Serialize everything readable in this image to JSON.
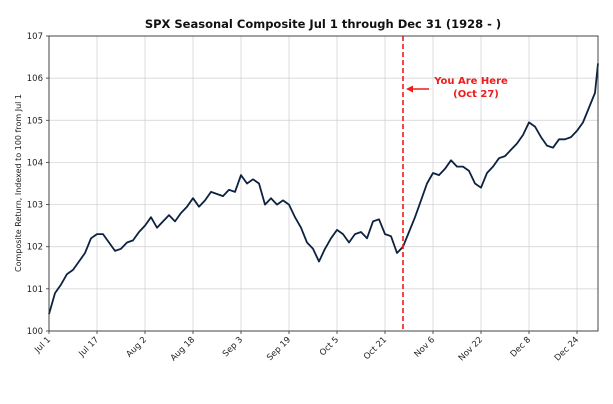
{
  "chart_data": {
    "type": "line",
    "title": "SPX Seasonal Composite Jul 1 through Dec 31 (1928 - )",
    "xlabel": "",
    "ylabel": "Composite Return, Indexed to 100 from Jul 1",
    "ylim": [
      100,
      107
    ],
    "yticks": [
      "100",
      "101",
      "102",
      "103",
      "104",
      "105",
      "106",
      "107"
    ],
    "xlim": [
      "Jul 1",
      "Dec 31"
    ],
    "xticks": [
      "Jul 1",
      "Jul 17",
      "Aug 2",
      "Aug 18",
      "Sep 3",
      "Sep 19",
      "Oct 5",
      "Oct 21",
      "Nov 6",
      "Nov 22",
      "Dec 8",
      "Dec 24"
    ],
    "grid": true,
    "line_color": "#0d2240",
    "marker_color": "#ee1c1c",
    "marker_date": "Oct 27",
    "annotation": {
      "line1": "You Are Here",
      "line2": "(Oct 27)"
    },
    "series": [
      {
        "x": [
          "Jul 1",
          "Jul 3",
          "Jul 5",
          "Jul 7",
          "Jul 9",
          "Jul 11",
          "Jul 13",
          "Jul 15",
          "Jul 17",
          "Jul 19",
          "Jul 21",
          "Jul 23",
          "Jul 25",
          "Jul 27",
          "Jul 29",
          "Jul 31",
          "Aug 2",
          "Aug 4",
          "Aug 6",
          "Aug 8",
          "Aug 10",
          "Aug 12",
          "Aug 14",
          "Aug 16",
          "Aug 18",
          "Aug 20",
          "Aug 22",
          "Aug 24",
          "Aug 26",
          "Aug 28",
          "Aug 30",
          "Sep 1",
          "Sep 3",
          "Sep 5",
          "Sep 7",
          "Sep 9",
          "Sep 11",
          "Sep 13",
          "Sep 15",
          "Sep 17",
          "Sep 19",
          "Sep 21",
          "Sep 23",
          "Sep 25",
          "Sep 27",
          "Sep 29",
          "Oct 1",
          "Oct 3",
          "Oct 5",
          "Oct 7",
          "Oct 9",
          "Oct 11",
          "Oct 13",
          "Oct 15",
          "Oct 17",
          "Oct 19",
          "Oct 21",
          "Oct 23",
          "Oct 25",
          "Oct 27",
          "Oct 29",
          "Oct 31",
          "Nov 2",
          "Nov 4",
          "Nov 6",
          "Nov 8",
          "Nov 10",
          "Nov 12",
          "Nov 14",
          "Nov 16",
          "Nov 18",
          "Nov 20",
          "Nov 22",
          "Nov 24",
          "Nov 26",
          "Nov 28",
          "Nov 30",
          "Dec 2",
          "Dec 4",
          "Dec 6",
          "Dec 8",
          "Dec 10",
          "Dec 12",
          "Dec 14",
          "Dec 16",
          "Dec 18",
          "Dec 20",
          "Dec 22",
          "Dec 24",
          "Dec 26",
          "Dec 28",
          "Dec 30",
          "Dec 31"
        ],
        "y": [
          100.4,
          100.9,
          101.1,
          101.35,
          101.45,
          101.65,
          101.85,
          102.2,
          102.3,
          102.3,
          102.1,
          101.9,
          101.95,
          102.1,
          102.15,
          102.35,
          102.5,
          102.7,
          102.45,
          102.6,
          102.75,
          102.6,
          102.8,
          102.95,
          103.15,
          102.95,
          103.1,
          103.3,
          103.25,
          103.2,
          103.35,
          103.3,
          103.7,
          103.5,
          103.6,
          103.5,
          103.0,
          103.15,
          103.0,
          103.1,
          103.0,
          102.7,
          102.45,
          102.1,
          101.95,
          101.65,
          101.95,
          102.2,
          102.4,
          102.3,
          102.1,
          102.3,
          102.35,
          102.2,
          102.6,
          102.65,
          102.3,
          102.25,
          101.85,
          102.0,
          102.35,
          102.7,
          103.1,
          103.5,
          103.75,
          103.7,
          103.85,
          104.05,
          103.9,
          103.9,
          103.8,
          103.5,
          103.4,
          103.75,
          103.9,
          104.1,
          104.15,
          104.3,
          104.45,
          104.65,
          104.95,
          104.85,
          104.6,
          104.4,
          104.35,
          104.55,
          104.55,
          104.6,
          104.75,
          104.95,
          105.3,
          105.65,
          106.35
        ]
      }
    ]
  }
}
